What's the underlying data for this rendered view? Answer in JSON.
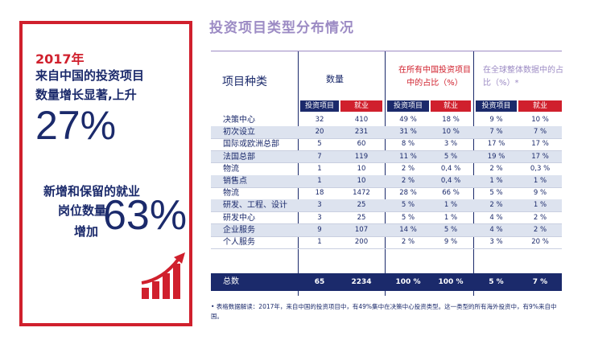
{
  "panel": {
    "year": "2017年",
    "line1": "来自中国的投资项目",
    "line2": "数量增长显著,上升",
    "big1": "27%",
    "jobs_line1": "新增和保留的就业",
    "jobs_line2": "岗位数量",
    "jobs_line3": "增加",
    "big2": "63%",
    "icon": "growth-bar-chart-icon"
  },
  "title": "投资项目类型分布情况",
  "table": {
    "col_name": "项目种类",
    "col_count": "数量",
    "col_china": "在所有中国投资项目中的占比（%）",
    "col_global": "在全球整体数据中的占比（%）*",
    "subheaders": [
      "投资项目",
      "就业",
      "投资项目",
      "就业",
      "投资项目",
      "就业"
    ],
    "rows": [
      {
        "label": "决策中心",
        "v": [
          "32",
          "410",
          "49 %",
          "18 %",
          "9 %",
          "10 %"
        ]
      },
      {
        "label": "初次设立",
        "v": [
          "20",
          "231",
          "31 %",
          "10 %",
          "7 %",
          "7 %"
        ]
      },
      {
        "label": "国际或欧洲总部",
        "v": [
          "5",
          "60",
          "8 %",
          "3 %",
          "17 %",
          "17 %"
        ]
      },
      {
        "label": "法国总部",
        "v": [
          "7",
          "119",
          "11 %",
          "5 %",
          "19 %",
          "17 %"
        ]
      },
      {
        "label": "物流",
        "v": [
          "1",
          "10",
          "2 %",
          "0,4 %",
          "2 %",
          "0,3 %"
        ]
      },
      {
        "label": "销售点",
        "v": [
          "1",
          "10",
          "2 %",
          "0,4 %",
          "1 %",
          "1 %"
        ]
      },
      {
        "label": "物流",
        "v": [
          "18",
          "1472",
          "28 %",
          "66 %",
          "5 %",
          "9 %"
        ]
      },
      {
        "label": "研发、工程、设计",
        "v": [
          "3",
          "25",
          "5 %",
          "1 %",
          "2 %",
          "1 %"
        ]
      },
      {
        "label": "研发中心",
        "v": [
          "3",
          "25",
          "5 %",
          "1 %",
          "4 %",
          "2 %"
        ]
      },
      {
        "label": "企业服务",
        "v": [
          "9",
          "107",
          "14 %",
          "5 %",
          "4 %",
          "2 %"
        ]
      },
      {
        "label": "个人服务",
        "v": [
          "1",
          "200",
          "2 %",
          "9 %",
          "3 %",
          "20 %"
        ]
      }
    ],
    "total": {
      "label": "总数",
      "v": [
        "65",
        "2234",
        "100 %",
        "100 %",
        "5 %",
        "7 %"
      ]
    }
  },
  "footnote": "• 表格数据解读：2017年，来自中国的投资项目中，有49%集中在决策中心投资类型。这一类型的所有海外投资中，有9%来自中国。",
  "colors": {
    "red": "#d0202d",
    "navy": "#1b2a6b",
    "lavender": "#9c8bc4",
    "row_alt": "#dde3ef"
  }
}
